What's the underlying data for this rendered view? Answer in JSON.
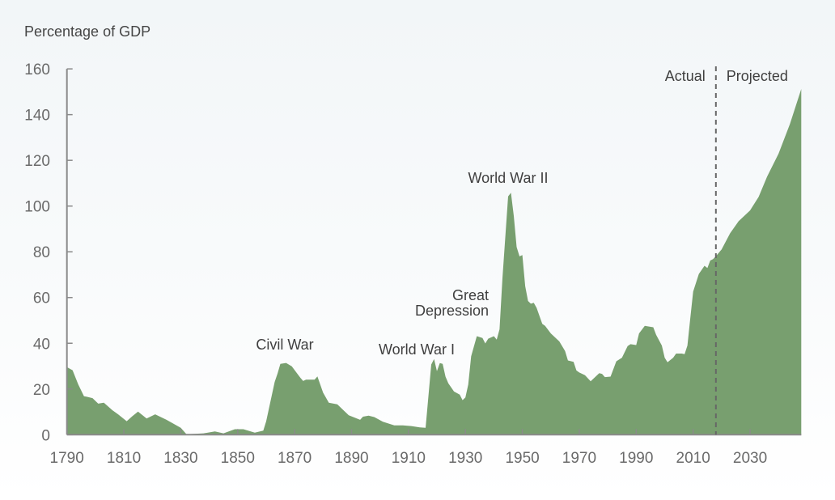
{
  "chart_data": {
    "type": "area",
    "title": "",
    "ylabel": "Percentage of GDP",
    "xlabel": "",
    "xlim": [
      1790,
      2048
    ],
    "ylim": [
      0,
      160
    ],
    "grid": false,
    "fill_color": "#789f6f",
    "axis_color": "#8a8a8a",
    "divider_color": "#666666",
    "x_ticks": [
      1790,
      1810,
      1830,
      1850,
      1870,
      1890,
      1910,
      1930,
      1950,
      1970,
      1990,
      2010,
      2030
    ],
    "y_ticks": [
      0,
      20,
      40,
      60,
      80,
      100,
      120,
      140,
      160
    ],
    "divider": {
      "x": 2018,
      "left_label": "Actual",
      "right_label": "Projected"
    },
    "annotations": [
      {
        "text": "Civil War",
        "x": 1868,
        "y": 38
      },
      {
        "text": "World War I",
        "x": 1919,
        "y": 36
      },
      {
        "text": "Great",
        "x": 1936,
        "y": 58
      },
      {
        "text": "Depression",
        "x": 1936,
        "y": 51
      },
      {
        "text": "World War II",
        "x": 1946,
        "y": 113
      }
    ],
    "x": [
      1790,
      1792,
      1794,
      1796,
      1797,
      1799,
      1801,
      1803,
      1806,
      1808,
      1811,
      1813,
      1815,
      1818,
      1821,
      1825,
      1830,
      1832,
      1838,
      1842,
      1845,
      1849,
      1852,
      1856,
      1859,
      1860,
      1863,
      1864,
      1865,
      1867,
      1869,
      1872,
      1873,
      1874,
      1877,
      1878,
      1880,
      1882,
      1885,
      1889,
      1893,
      1894,
      1896,
      1898,
      1901,
      1905,
      1908,
      1911,
      1914,
      1916,
      1918,
      1919,
      1920,
      1921,
      1922,
      1923,
      1924,
      1926,
      1928,
      1929,
      1930,
      1931,
      1932,
      1934,
      1936,
      1937,
      1938,
      1940,
      1941,
      1942,
      1943,
      1945,
      1946,
      1947,
      1948,
      1949,
      1950,
      1951,
      1952,
      1953,
      1954,
      1955,
      1957,
      1958,
      1960,
      1963,
      1965,
      1966,
      1968,
      1969,
      1970,
      1972,
      1974,
      1977,
      1978,
      1979,
      1981,
      1983,
      1985,
      1987,
      1988,
      1990,
      1991,
      1993,
      1996,
      1997,
      1999,
      2000,
      2001,
      2003,
      2004,
      2006,
      2007,
      2008,
      2009,
      2010,
      2012,
      2014,
      2015,
      2016,
      2017,
      2018,
      2020,
      2023,
      2026,
      2030,
      2033,
      2036,
      2040,
      2044,
      2048
    ],
    "values": [
      29.6,
      28.2,
      21.9,
      16.8,
      16.6,
      16.0,
      13.6,
      14.0,
      10.7,
      8.9,
      5.9,
      8.1,
      10.1,
      7.1,
      8.9,
      6.5,
      3.0,
      0.2,
      0.6,
      1.4,
      0.6,
      2.4,
      2.4,
      0.9,
      1.8,
      5.9,
      23.1,
      26.7,
      31.0,
      31.4,
      29.9,
      24.9,
      23.5,
      24.1,
      24.1,
      25.5,
      18.4,
      14.0,
      13.3,
      8.5,
      6.5,
      7.9,
      8.3,
      7.7,
      5.7,
      4.1,
      4.1,
      3.8,
      3.2,
      3.0,
      30.7,
      33.1,
      27.8,
      31.3,
      31.0,
      25.4,
      22.5,
      18.9,
      17.5,
      15.1,
      16.3,
      21.9,
      34.3,
      43.1,
      42.3,
      39.9,
      42.0,
      43.1,
      41.6,
      46.1,
      68.5,
      104.2,
      105.8,
      95.7,
      82.1,
      78.0,
      78.6,
      65.0,
      58.5,
      57.3,
      57.7,
      55.5,
      48.5,
      47.6,
      44.3,
      40.8,
      36.6,
      32.5,
      31.9,
      28.1,
      27.2,
      26.0,
      23.4,
      26.9,
      26.6,
      25.2,
      25.4,
      32.1,
      33.7,
      38.8,
      39.6,
      39.2,
      44.3,
      47.6,
      47.0,
      43.7,
      39.0,
      33.7,
      31.7,
      33.7,
      35.5,
      35.5,
      35.2,
      39.0,
      50.8,
      62.6,
      70.3,
      73.9,
      72.9,
      76.2,
      76.8,
      78.1,
      81.0,
      88.1,
      93.4,
      98.1,
      104.0,
      112.9,
      122.9,
      135.9,
      151.2
    ]
  }
}
